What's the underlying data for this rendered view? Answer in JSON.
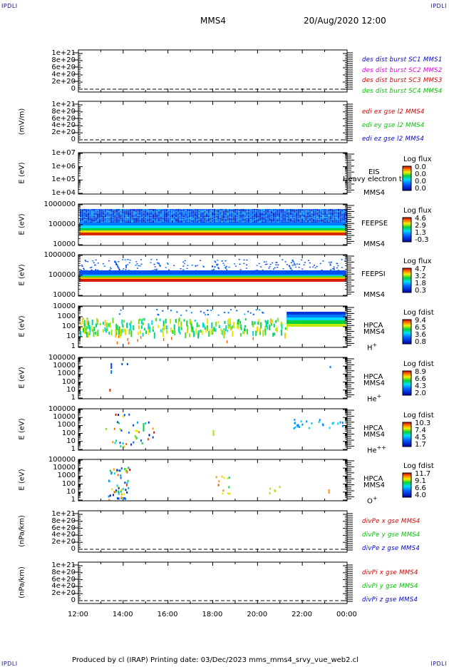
{
  "header": {
    "corner_label": "IPDLI",
    "spacecraft": "MMS4",
    "datetime": "20/Aug/2020 12:00"
  },
  "footer": {
    "text": "Produced by cl (IRAP)   Printing date: 03/Dec/2023   mms_mms4_srvy_vue_web2.cl"
  },
  "colors": {
    "red": "#d40000",
    "magenta": "#e000e0",
    "green": "#00c000",
    "blue": "#0000c8",
    "axis": "#000000"
  },
  "chart_data": [
    {
      "id": "p1",
      "type": "line",
      "yticks": [
        "1e+21",
        "8e+20",
        "6e+20",
        "4e+20",
        "2e+20",
        "0"
      ],
      "ylabel": "",
      "legend": [
        {
          "text": "des dist burst SC1 MMS1",
          "color": "blue"
        },
        {
          "text": "des dist burst SC2 MMS2",
          "color": "magenta"
        },
        {
          "text": "des dist burst SC3 MMS3",
          "color": "red"
        },
        {
          "text": "des dist burst SC4 MMS4",
          "color": "green"
        }
      ]
    },
    {
      "id": "p2",
      "type": "line",
      "yticks": [
        "1e+21",
        "8e+20",
        "6e+20",
        "4e+20",
        "2e+20",
        "0"
      ],
      "ylabel": "(mV/m)",
      "legend": [
        {
          "text": "edi ex gse l2 MMS4",
          "color": "red"
        },
        {
          "text": "edi ey gse l2 MMS4",
          "color": "green"
        },
        {
          "text": "edi ez gse l2 MMS4",
          "color": "blue"
        }
      ]
    },
    {
      "id": "p3",
      "type": "heatmap",
      "yticks": [
        "1e+07",
        "1e+06",
        "1e+05",
        "1e+04"
      ],
      "ylabel": "E (eV)",
      "instrument": [
        "EIS",
        "MMS4"
      ],
      "overlay_text": "Heavy electron to",
      "cbar_title": "Log flux",
      "cbar_values": [
        "0.0",
        "0.0",
        "0.0",
        "0.0"
      ]
    },
    {
      "id": "p4",
      "type": "heatmap",
      "yticks": [
        "1000000",
        "100000",
        "10000"
      ],
      "ylabel": "E (eV)",
      "instrument": [
        "FEEPSE",
        "MMS4"
      ],
      "cbar_title": "Log flux",
      "cbar_values": [
        "4.6",
        "2.9",
        "1.3",
        "-0.3"
      ]
    },
    {
      "id": "p5",
      "type": "heatmap",
      "yticks": [
        "1000000",
        "100000",
        "10000"
      ],
      "ylabel": "E (eV)",
      "instrument": [
        "FEEPSI",
        "MMS4"
      ],
      "cbar_title": "Log flux",
      "cbar_values": [
        "4.7",
        "3.2",
        "1.8",
        "0.3"
      ]
    },
    {
      "id": "p6",
      "type": "heatmap",
      "yticks": [
        "10000",
        "1000",
        "100",
        "10",
        "1"
      ],
      "ylabel": "E (eV)",
      "instrument": [
        "HPCA",
        "MMS4"
      ],
      "species": "H",
      "charge": "+",
      "cbar_title": "Log fdist",
      "cbar_values": [
        "9.4",
        "6.5",
        "3.6",
        "0.8"
      ]
    },
    {
      "id": "p7",
      "type": "heatmap",
      "yticks": [
        "100000",
        "10000",
        "1000",
        "100",
        "10",
        "1"
      ],
      "ylabel": "E (eV)",
      "instrument": [
        "HPCA",
        "MMS4"
      ],
      "species": "He",
      "charge": "+",
      "cbar_title": "Log fdist",
      "cbar_values": [
        "8.9",
        "6.6",
        "4.3",
        "2.0"
      ]
    },
    {
      "id": "p8",
      "type": "heatmap",
      "yticks": [
        "100000",
        "10000",
        "1000",
        "100",
        "10",
        "1"
      ],
      "ylabel": "E (eV)",
      "instrument": [
        "HPCA",
        "MMS4"
      ],
      "species": "He",
      "charge": "++",
      "cbar_title": "Log fdist",
      "cbar_values": [
        "10.3",
        "7.4",
        "4.5",
        "1.7"
      ]
    },
    {
      "id": "p9",
      "type": "heatmap",
      "yticks": [
        "100000",
        "10000",
        "1000",
        "100",
        "10",
        "1"
      ],
      "ylabel": "E (eV)",
      "instrument": [
        "HPCA",
        "MMS4"
      ],
      "species": "O",
      "charge": "+",
      "cbar_title": "Log fdist",
      "cbar_values": [
        "11.7",
        "9.1",
        "6.6",
        "4.0"
      ]
    },
    {
      "id": "p10",
      "type": "line",
      "yticks": [
        "1e+21",
        "8e+20",
        "6e+20",
        "4e+20",
        "2e+20",
        "0"
      ],
      "ylabel": "(nPa/km)",
      "legend": [
        {
          "text": "divPe x gse MMS4",
          "color": "red"
        },
        {
          "text": "divPe y gse MMS4",
          "color": "green"
        },
        {
          "text": "divPe z gse MMS4",
          "color": "blue"
        }
      ]
    },
    {
      "id": "p11",
      "type": "line",
      "yticks": [
        "1e+21",
        "8e+20",
        "6e+20",
        "4e+20",
        "2e+20",
        "0"
      ],
      "ylabel": "(nPa/km)",
      "legend": [
        {
          "text": "divPi x gse MMS4",
          "color": "red"
        },
        {
          "text": "divPi y gse MMS4",
          "color": "green"
        },
        {
          "text": "divPi z gse MMS4",
          "color": "blue"
        }
      ]
    }
  ],
  "x_axis": {
    "ticks": [
      "12:00",
      "14:00",
      "16:00",
      "18:00",
      "20:00",
      "22:00",
      "00:00"
    ]
  }
}
